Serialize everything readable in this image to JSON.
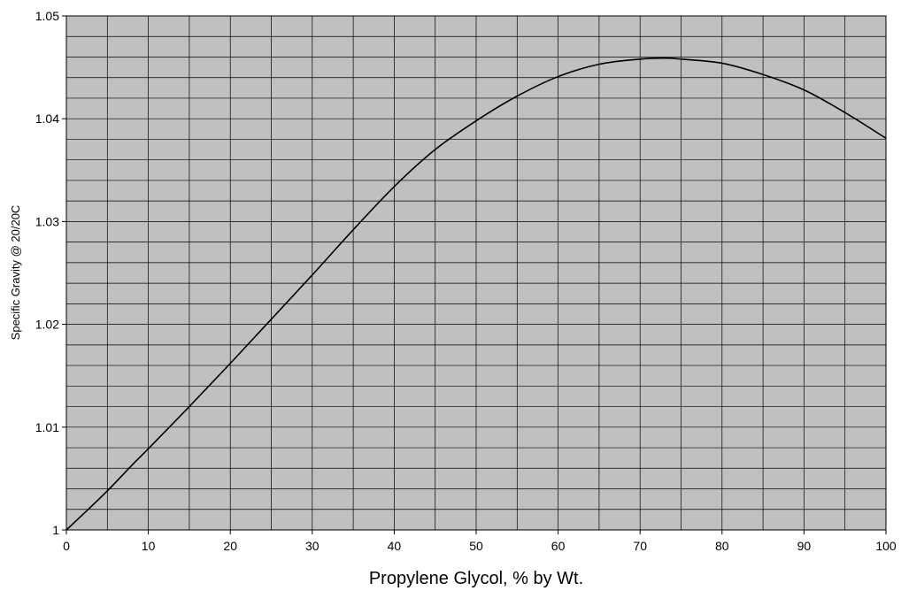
{
  "chart_data": {
    "type": "line",
    "title": "",
    "xlabel": "Propylene Glycol, % by Wt.",
    "ylabel": "Specific Gravity @ 20/20C",
    "xlim": [
      0,
      100
    ],
    "ylim": [
      1.0,
      1.05
    ],
    "x_ticks": [
      0,
      10,
      20,
      30,
      40,
      50,
      60,
      70,
      80,
      90,
      100
    ],
    "x_tick_labels": [
      "0",
      "10",
      "20",
      "30",
      "40",
      "50",
      "60",
      "70",
      "80",
      "90",
      "100"
    ],
    "y_ticks": [
      1.0,
      1.01,
      1.02,
      1.03,
      1.04,
      1.05
    ],
    "y_tick_labels": [
      "1",
      "1.01",
      "1.02",
      "1.03",
      "1.04",
      "1.05"
    ],
    "grid": true,
    "x_grid_step": 5,
    "y_grid_step": 0.002,
    "plot_background": "#c0c0c0",
    "grid_color": "#000000",
    "line_color": "#000000",
    "series": [
      {
        "x": [
          0,
          2,
          5,
          8,
          10,
          15,
          20,
          25,
          30,
          35,
          40,
          45,
          50,
          55,
          60,
          65,
          70,
          73,
          75,
          80,
          85,
          90,
          95,
          100
        ],
        "y": [
          1.0,
          1.0015,
          1.0038,
          1.0063,
          1.0079,
          1.012,
          1.0162,
          1.0205,
          1.0248,
          1.0292,
          1.0334,
          1.037,
          1.0398,
          1.0422,
          1.0441,
          1.0453,
          1.0458,
          1.0459,
          1.0458,
          1.0454,
          1.0443,
          1.0428,
          1.0406,
          1.0381
        ]
      }
    ]
  }
}
